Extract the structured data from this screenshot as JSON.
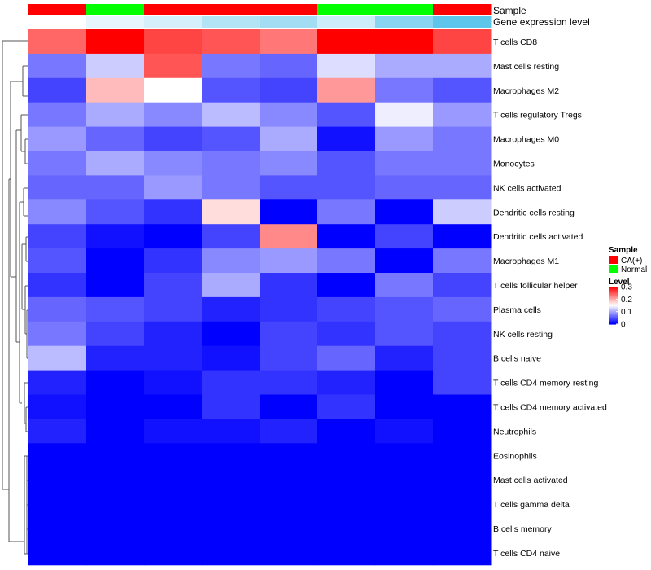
{
  "chart_data": {
    "type": "heatmap",
    "annotation_rows": [
      {
        "label": "Sample",
        "values": [
          "CA(+)",
          "Normal",
          "CA(+)",
          "CA(+)",
          "CA(+)",
          "Normal",
          "Normal",
          "CA(+)"
        ]
      },
      {
        "label": "Gene expression level",
        "shades": [
          0.0,
          0.15,
          0.25,
          0.45,
          0.55,
          0.3,
          0.7,
          0.95
        ]
      }
    ],
    "row_labels": [
      "T cells CD8",
      "Mast cells resting",
      "Macrophages M2",
      "T cells regulatory  Tregs",
      "Macrophages M0",
      "Monocytes",
      "NK cells activated",
      "Dendritic cells resting",
      "Dendritic cells activated",
      "Macrophages M1",
      "T cells follicular helper",
      "Plasma cells",
      "NK cells resting",
      "B cells naive",
      "T cells CD4 memory resting",
      "T cells CD4 memory activated",
      "Neutrophils",
      "Eosinophils",
      "Mast cells activated",
      "T cells gamma delta",
      "B cells memory",
      "T cells CD4 naive"
    ],
    "values": [
      [
        0.24,
        0.3,
        0.26,
        0.25,
        0.23,
        0.3,
        0.3,
        0.26
      ],
      [
        0.07,
        0.12,
        0.25,
        0.07,
        0.06,
        0.13,
        0.1,
        0.1
      ],
      [
        0.04,
        0.19,
        0.15,
        0.05,
        0.04,
        0.21,
        0.07,
        0.05
      ],
      [
        0.07,
        0.1,
        0.08,
        0.11,
        0.08,
        0.05,
        0.14,
        0.09
      ],
      [
        0.09,
        0.06,
        0.04,
        0.05,
        0.1,
        0.01,
        0.09,
        0.07
      ],
      [
        0.07,
        0.1,
        0.08,
        0.07,
        0.08,
        0.05,
        0.07,
        0.07
      ],
      [
        0.06,
        0.06,
        0.09,
        0.07,
        0.05,
        0.05,
        0.06,
        0.06
      ],
      [
        0.08,
        0.05,
        0.03,
        0.17,
        0.0,
        0.07,
        0.0,
        0.12
      ],
      [
        0.04,
        0.01,
        0.0,
        0.04,
        0.22,
        0.0,
        0.04,
        0.0
      ],
      [
        0.05,
        0.0,
        0.03,
        0.08,
        0.09,
        0.07,
        0.0,
        0.07
      ],
      [
        0.03,
        0.0,
        0.04,
        0.1,
        0.03,
        0.0,
        0.07,
        0.04
      ],
      [
        0.06,
        0.05,
        0.04,
        0.02,
        0.03,
        0.04,
        0.05,
        0.06
      ],
      [
        0.07,
        0.04,
        0.02,
        0.0,
        0.04,
        0.03,
        0.05,
        0.04
      ],
      [
        0.11,
        0.02,
        0.02,
        0.01,
        0.04,
        0.06,
        0.02,
        0.04
      ],
      [
        0.02,
        0.0,
        0.01,
        0.03,
        0.03,
        0.02,
        0.0,
        0.04
      ],
      [
        0.01,
        0.0,
        0.0,
        0.03,
        0.0,
        0.03,
        0.0,
        0.0
      ],
      [
        0.02,
        0.0,
        0.01,
        0.01,
        0.02,
        0.0,
        0.01,
        0.0
      ],
      [
        0.0,
        0.0,
        0.0,
        0.0,
        0.0,
        0.0,
        0.0,
        0.0
      ],
      [
        0.0,
        0.0,
        0.0,
        0.0,
        0.0,
        0.0,
        0.0,
        0.0
      ],
      [
        0.0,
        0.0,
        0.0,
        0.0,
        0.0,
        0.0,
        0.0,
        0.0
      ],
      [
        0.0,
        0.0,
        0.0,
        0.0,
        0.0,
        0.0,
        0.0,
        0.0
      ],
      [
        0.0,
        0.0,
        0.0,
        0.0,
        0.0,
        0.0,
        0.0,
        0.0
      ]
    ],
    "color_scale": {
      "min": 0,
      "mid": 0.15,
      "max": 0.3,
      "low_color": "#0000ff",
      "mid_color": "#ffffff",
      "high_color": "#ff0000"
    },
    "legend": {
      "sample_title": "Sample",
      "sample_entries": [
        {
          "label": "CA(+)",
          "color": "#ff0000"
        },
        {
          "label": "Normal",
          "color": "#00ff00"
        }
      ],
      "level_title": "Level",
      "level_ticks": [
        "0.3",
        "0.2",
        "0.1",
        "0"
      ],
      "level_tick_values": [
        0.3,
        0.2,
        0.1,
        0
      ]
    },
    "gene_level_colors": {
      "low": "#ffffff",
      "high": "#56c2ea"
    }
  }
}
